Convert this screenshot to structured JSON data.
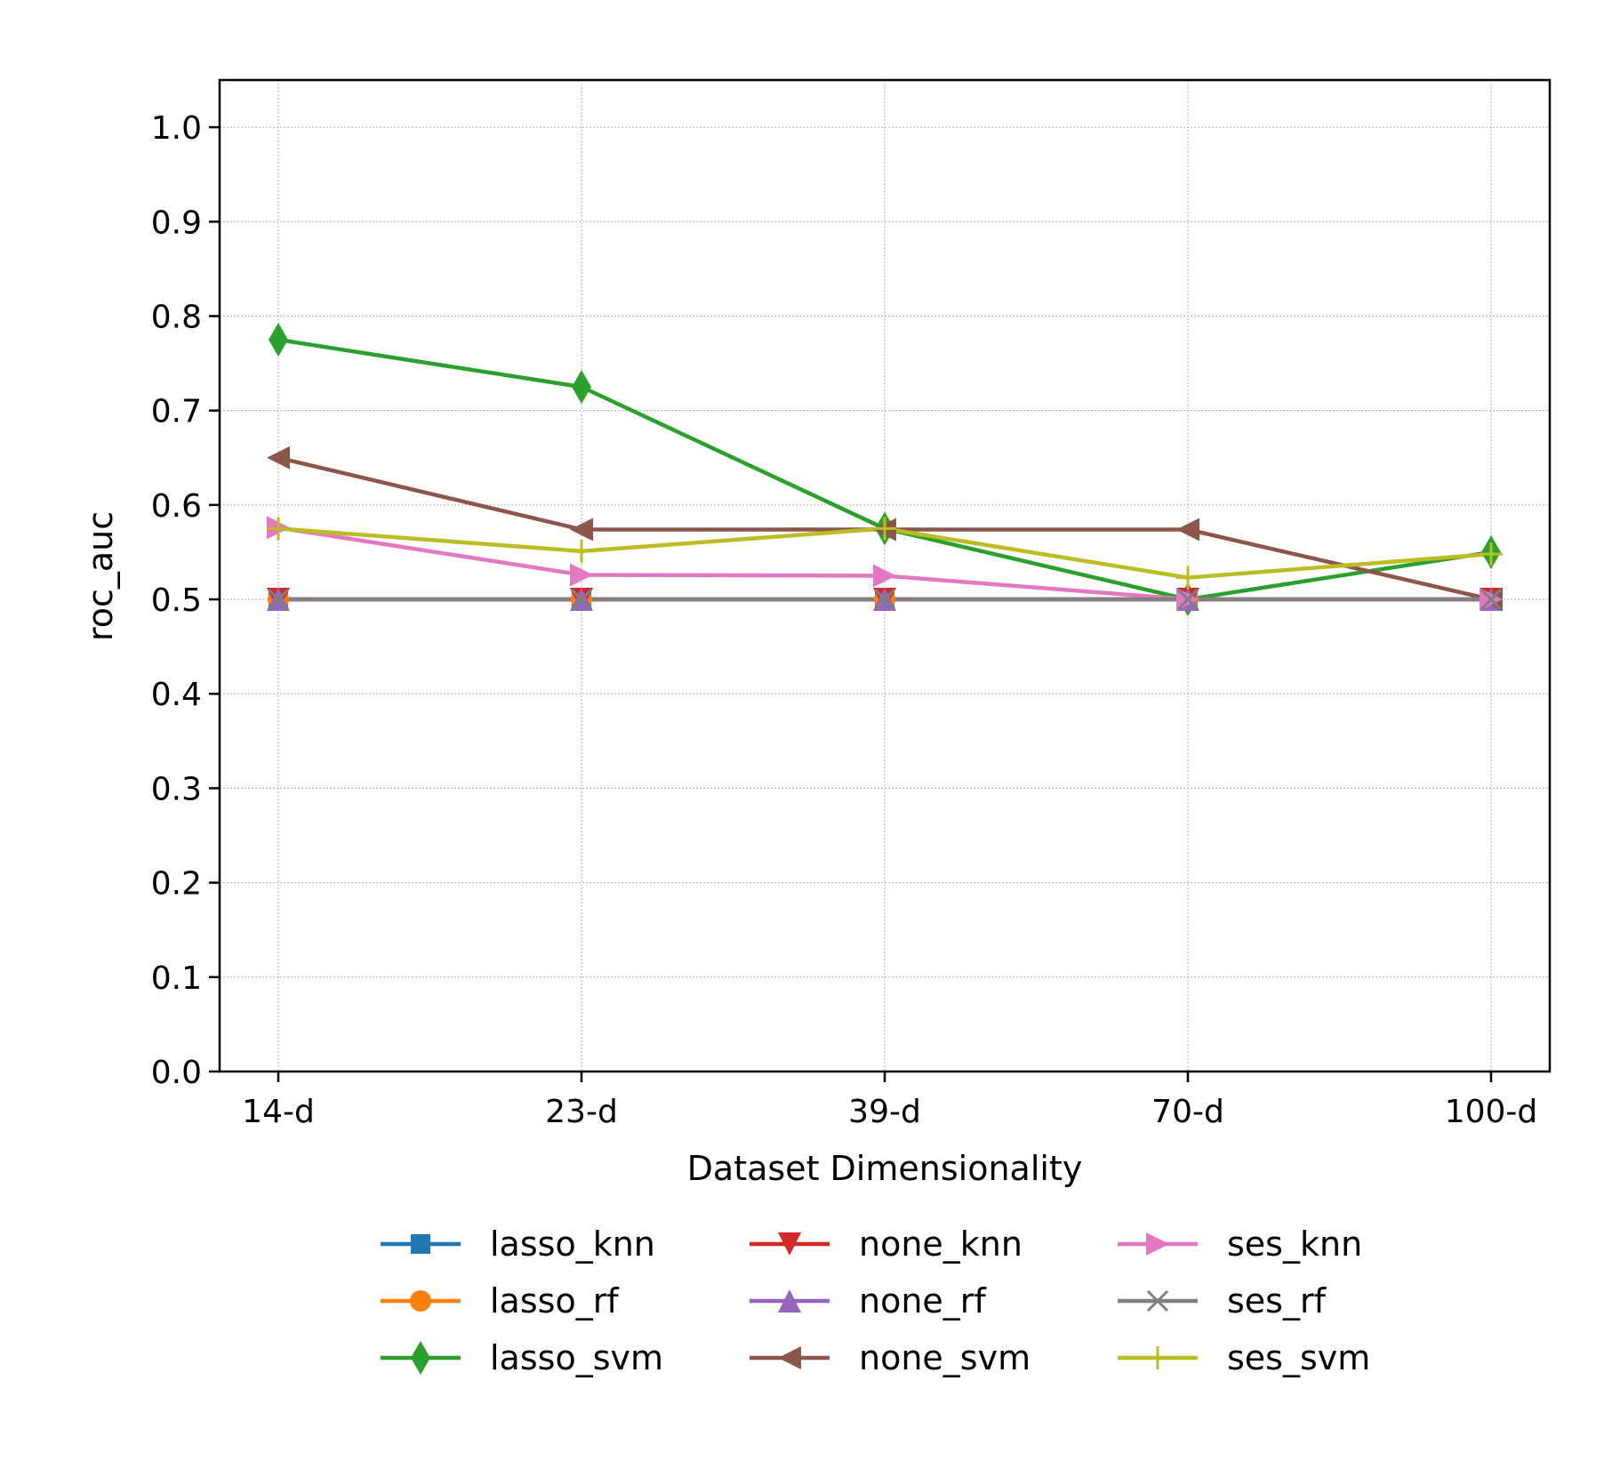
{
  "chart_data": {
    "type": "line",
    "title": "",
    "xlabel": "Dataset Dimensionality",
    "ylabel": "roc_auc",
    "categories": [
      "14-d",
      "23-d",
      "39-d",
      "70-d",
      "100-d"
    ],
    "ylim": [
      0.0,
      1.05
    ],
    "yticks": [
      "0.0",
      "0.1",
      "0.2",
      "0.3",
      "0.4",
      "0.5",
      "0.6",
      "0.7",
      "0.8",
      "0.9",
      "1.0"
    ],
    "grid": true,
    "legend_position": "bottom",
    "series": [
      {
        "name": "lasso_knn",
        "color": "#1f77b4",
        "marker": "square",
        "values": [
          0.5,
          0.5,
          0.5,
          0.5,
          0.5
        ]
      },
      {
        "name": "lasso_rf",
        "color": "#ff7f0e",
        "marker": "circle",
        "values": [
          0.5,
          0.5,
          0.5,
          0.5,
          0.5
        ]
      },
      {
        "name": "lasso_svm",
        "color": "#2ca02c",
        "marker": "diamond",
        "values": [
          0.775,
          0.725,
          0.575,
          0.5,
          0.55
        ]
      },
      {
        "name": "none_knn",
        "color": "#d62728",
        "marker": "triangle-down",
        "values": [
          0.5,
          0.5,
          0.5,
          0.5,
          0.5
        ]
      },
      {
        "name": "none_rf",
        "color": "#9467bd",
        "marker": "triangle-up",
        "values": [
          0.5,
          0.5,
          0.5,
          0.5,
          0.5
        ]
      },
      {
        "name": "none_svm",
        "color": "#8c564b",
        "marker": "triangle-left",
        "values": [
          0.65,
          0.574,
          0.574,
          0.574,
          0.5
        ]
      },
      {
        "name": "ses_knn",
        "color": "#e377c2",
        "marker": "triangle-right",
        "values": [
          0.576,
          0.526,
          0.525,
          0.5,
          0.5
        ]
      },
      {
        "name": "ses_rf",
        "color": "#7f7f7f",
        "marker": "x",
        "values": [
          0.5,
          0.5,
          0.5,
          0.5,
          0.5
        ]
      },
      {
        "name": "ses_svm",
        "color": "#bcbd22",
        "marker": "plus",
        "values": [
          0.575,
          0.551,
          0.575,
          0.523,
          0.548
        ]
      }
    ]
  }
}
